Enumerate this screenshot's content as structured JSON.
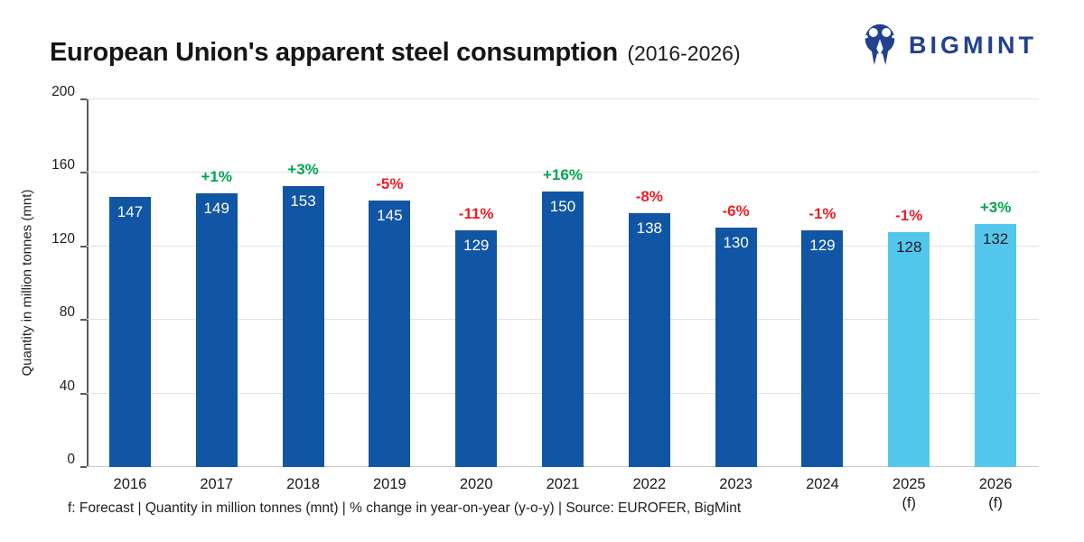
{
  "header": {
    "title": "European Union's apparent steel consumption",
    "subtitle": "(2016-2026)",
    "brand": "BIGMINT"
  },
  "chart_data": {
    "type": "bar",
    "title": "European Union's apparent steel consumption (2016-2026)",
    "xlabel": "",
    "ylabel": "Quantity in million tonnes (mnt)",
    "ylim": [
      0,
      200
    ],
    "yticks": [
      0,
      40,
      80,
      120,
      160,
      200
    ],
    "grid": true,
    "legend": "none",
    "categories": [
      "2016",
      "2017",
      "2018",
      "2019",
      "2020",
      "2021",
      "2022",
      "2023",
      "2024",
      "2025",
      "2026"
    ],
    "sublabels": [
      "",
      "",
      "",
      "",
      "",
      "",
      "",
      "",
      "",
      "(f)",
      "(f)"
    ],
    "values": [
      147,
      149,
      153,
      145,
      129,
      150,
      138,
      130,
      129,
      128,
      132
    ],
    "pct_change": [
      "",
      "+1%",
      "+3%",
      "-5%",
      "-11%",
      "+16%",
      "-8%",
      "-6%",
      "-1%",
      "-1%",
      "+3%"
    ],
    "forecast": [
      false,
      false,
      false,
      false,
      false,
      false,
      false,
      false,
      false,
      true,
      true
    ],
    "colors": {
      "actual_bar": "#1156a4",
      "forecast_bar": "#53c6ee",
      "positive_pct": "#00a551",
      "negative_pct": "#ee1c25",
      "value_label_on_dark": "#ffffff",
      "value_label_on_light": "#1f1f1f",
      "brand_navy": "#21418e"
    }
  },
  "footer": {
    "note": "f: Forecast | Quantity in million tonnes (mnt) | % change in year-on-year (y-o-y) | Source: EUROFER, BigMint"
  }
}
